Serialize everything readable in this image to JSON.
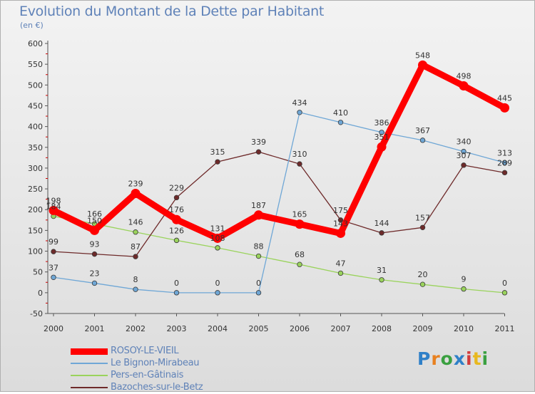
{
  "title": "Evolution du Montant de la Dette par Habitant",
  "subtitle": "(en €)",
  "logo": {
    "text": "Proxiti",
    "colors": [
      "#2f80c8",
      "#e8801f",
      "#3aa040",
      "#2f80c8",
      "#d23c3c",
      "#e8b81f",
      "#3aa040"
    ]
  },
  "chart_data": {
    "type": "line",
    "title": "Evolution du Montant de la Dette par Habitant",
    "subtitle": "(en €)",
    "x": [
      "2000",
      "2001",
      "2002",
      "2003",
      "2004",
      "2005",
      "2006",
      "2007",
      "2008",
      "2009",
      "2010",
      "2011"
    ],
    "ylim": [
      -50,
      600
    ],
    "yticks": [
      -50,
      0,
      50,
      100,
      150,
      200,
      250,
      300,
      350,
      400,
      450,
      500,
      550,
      600
    ],
    "grid": false,
    "legend_position": "bottom-left",
    "series": [
      {
        "name": "ROSOY-LE-VIEIL",
        "color": "#ff0000",
        "values": [
          198,
          150,
          239,
          176,
          131,
          187,
          165,
          143,
          351,
          548,
          498,
          445
        ]
      },
      {
        "name": "Le Bignon-Mirabeau",
        "color": "#6fa7d6",
        "values": [
          37,
          23,
          8,
          0,
          0,
          0,
          434,
          410,
          386,
          367,
          340,
          313
        ]
      },
      {
        "name": "Pers-en-Gâtinais",
        "color": "#9ad35c",
        "values": [
          184,
          166,
          146,
          126,
          108,
          88,
          68,
          47,
          31,
          20,
          9,
          0
        ]
      },
      {
        "name": "Bazoches-sur-le-Betz",
        "color": "#6e2a2a",
        "values": [
          99,
          93,
          87,
          229,
          315,
          339,
          310,
          175,
          144,
          157,
          307,
          289
        ]
      }
    ],
    "data_labels": [
      [
        "198",
        "150",
        "239",
        "176",
        "131",
        "187",
        "165",
        "143",
        "351",
        "548",
        "498",
        "445"
      ],
      [
        "37",
        "23",
        "8",
        "0",
        "0",
        "0",
        "434",
        "410",
        "386",
        "367",
        "340",
        "313"
      ],
      [
        "184",
        "166",
        "146",
        "126",
        "108",
        "88",
        "68",
        "47",
        "31",
        "20",
        "9",
        "0"
      ],
      [
        "99",
        "93",
        "87",
        "229",
        "315",
        "339",
        "310",
        "175",
        "144",
        "157",
        "307",
        "289"
      ]
    ]
  }
}
